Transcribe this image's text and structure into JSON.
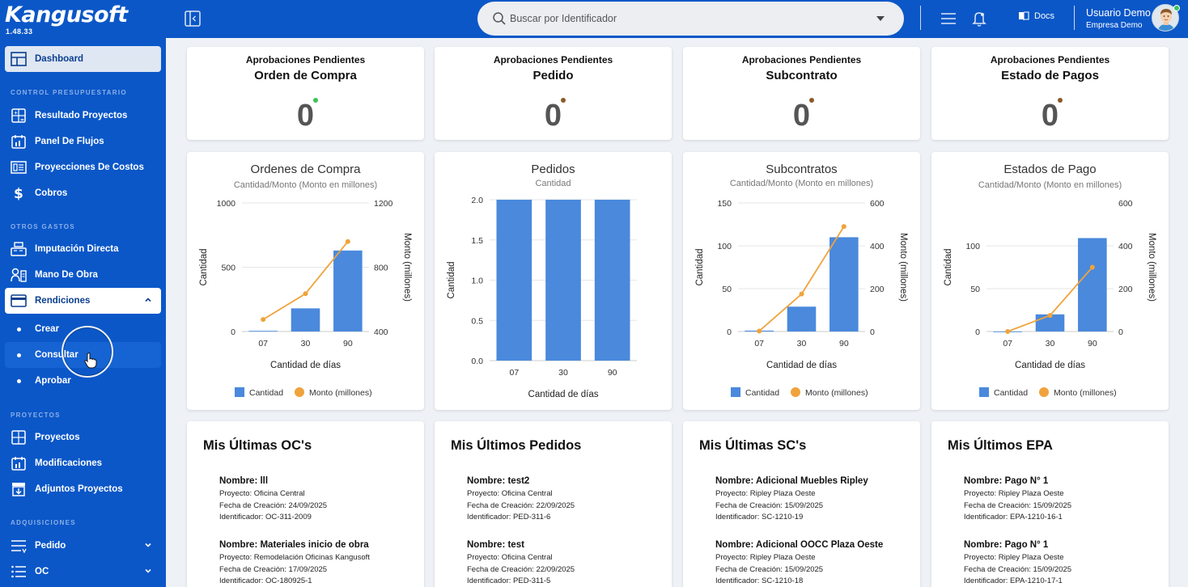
{
  "app": {
    "logo": "Kangusoft",
    "version": "1.48.33"
  },
  "header": {
    "search_placeholder": "Buscar por Identificador",
    "docs_label": "Docs",
    "user_name": "Usuario Demo",
    "company": "Empresa Demo"
  },
  "sidebar": {
    "dashboard": "Dashboard",
    "sections": {
      "control": "CONTROL PRESUPUESTARIO",
      "otros": "OTROS GASTOS",
      "proyectos": "PROYECTOS",
      "adquisiciones": "ADQUISICIONES"
    },
    "items": {
      "resultado": "Resultado Proyectos",
      "flujos": "Panel De Flujos",
      "proyecciones": "Proyecciones De Costos",
      "cobros": "Cobros",
      "imputacion": "Imputación Directa",
      "mano_obra": "Mano De Obra",
      "rendiciones": "Rendiciones",
      "crear": "Crear",
      "consultar": "Consultar",
      "aprobar": "Aprobar",
      "proyectos": "Proyectos",
      "modificaciones": "Modificaciones",
      "adjuntos": "Adjuntos Proyectos",
      "pedido": "Pedido",
      "oc": "OC"
    }
  },
  "kpis": [
    {
      "label": "Aprobaciones Pendientes",
      "name": "Orden de Compra",
      "value": "0",
      "status_color": "#3cc35a"
    },
    {
      "label": "Aprobaciones Pendientes",
      "name": "Pedido",
      "value": "0",
      "status_color": "#8a5a2b"
    },
    {
      "label": "Aprobaciones Pendientes",
      "name": "Subcontrato",
      "value": "0",
      "status_color": "#8a5a2b"
    },
    {
      "label": "Aprobaciones Pendientes",
      "name": "Estado de Pagos",
      "value": "0",
      "status_color": "#8a5a2b"
    }
  ],
  "chart_data": [
    {
      "type": "bar",
      "title": "Ordenes de Compra",
      "subtitle": "Cantidad/Monto (Monto en millones)",
      "xlabel": "Cantidad de días",
      "ylabel": "Cantidad",
      "y2label": "Monto (millones)",
      "categories": [
        "07",
        "30",
        "90"
      ],
      "ylim": [
        0,
        1000
      ],
      "yticks": [
        0,
        500,
        1000
      ],
      "y2lim": [
        400,
        1200
      ],
      "y2ticks": [
        400,
        800,
        1200
      ],
      "series": [
        {
          "name": "Cantidad",
          "kind": "bar",
          "values": [
            5,
            180,
            630
          ],
          "color": "#4a89dc"
        },
        {
          "name": "Monto (millones)",
          "kind": "line",
          "values": [
            475,
            635,
            960
          ],
          "color": "#f0a33c"
        }
      ],
      "legend": "bottom"
    },
    {
      "type": "bar",
      "title": "Pedidos",
      "subtitle": "Cantidad",
      "xlabel": "Cantidad de días",
      "ylabel": "Cantidad",
      "categories": [
        "07",
        "30",
        "90"
      ],
      "ylim": [
        0,
        2.0
      ],
      "yticks": [
        "0.0",
        "0.5",
        "1.0",
        "1.5",
        "2.0"
      ],
      "series": [
        {
          "name": "Cantidad",
          "kind": "bar",
          "values": [
            2,
            2,
            2
          ],
          "color": "#4a89dc"
        }
      ]
    },
    {
      "type": "bar",
      "title": "Subcontratos",
      "subtitle": "Cantidad/Monto (Monto en millones)",
      "xlabel": "Cantidad de días",
      "ylabel": "Cantidad",
      "y2label": "Monto (millones)",
      "categories": [
        "07",
        "30",
        "90"
      ],
      "ylim": [
        0,
        150
      ],
      "yticks": [
        0,
        50,
        100,
        150
      ],
      "y2lim": [
        0,
        600
      ],
      "y2ticks": [
        0,
        200,
        400,
        600
      ],
      "series": [
        {
          "name": "Cantidad",
          "kind": "bar",
          "values": [
            1,
            29,
            110
          ],
          "color": "#4a89dc"
        },
        {
          "name": "Monto (millones)",
          "kind": "line",
          "values": [
            2,
            175,
            490
          ],
          "color": "#f0a33c"
        }
      ],
      "legend": "bottom"
    },
    {
      "type": "bar",
      "title": "Estados de Pago",
      "subtitle": "Cantidad/Monto (Monto en millones)",
      "xlabel": "Cantidad de días",
      "ylabel": "Cantidad",
      "y2label": "Monto (millones)",
      "categories": [
        "07",
        "30",
        "90"
      ],
      "ylim": [
        0,
        150
      ],
      "yticks": [
        0,
        50,
        100
      ],
      "y2lim": [
        0,
        600
      ],
      "y2ticks": [
        0,
        200,
        400,
        600
      ],
      "series": [
        {
          "name": "Cantidad",
          "kind": "bar",
          "values": [
            0,
            20,
            109
          ],
          "color": "#4a89dc"
        },
        {
          "name": "Monto (millones)",
          "kind": "line",
          "values": [
            0,
            75,
            300
          ],
          "color": "#f0a33c"
        }
      ],
      "legend": "bottom"
    }
  ],
  "lists": [
    {
      "title": "Mis Últimas OC's",
      "entries": [
        {
          "name": "Nombre: lll",
          "proyecto": "Proyecto: Oficina Central",
          "fecha": "Fecha de Creación: 24/09/2025",
          "id": "Identificador: OC-311-2009"
        },
        {
          "name": "Nombre: Materiales inicio de obra",
          "proyecto": "Proyecto: Remodelación Oficinas Kangusoft",
          "fecha": "Fecha de Creación: 17/09/2025",
          "id": "Identificador: OC-180925-1"
        }
      ]
    },
    {
      "title": "Mis Últimos Pedidos",
      "entries": [
        {
          "name": "Nombre: test2",
          "proyecto": "Proyecto: Oficina Central",
          "fecha": "Fecha de Creación: 22/09/2025",
          "id": "Identificador: PED-311-6"
        },
        {
          "name": "Nombre: test",
          "proyecto": "Proyecto: Oficina Central",
          "fecha": "Fecha de Creación: 22/09/2025",
          "id": "Identificador: PED-311-5"
        }
      ]
    },
    {
      "title": "Mis Últimas SC's",
      "entries": [
        {
          "name": "Nombre: Adicional Muebles Ripley",
          "proyecto": "Proyecto: Ripley Plaza Oeste",
          "fecha": "Fecha de Creación: 15/09/2025",
          "id": "Identificador: SC-1210-19"
        },
        {
          "name": "Nombre: Adicional OOCC Plaza Oeste",
          "proyecto": "Proyecto: Ripley Plaza Oeste",
          "fecha": "Fecha de Creación: 15/09/2025",
          "id": "Identificador: SC-1210-18"
        }
      ]
    },
    {
      "title": "Mis Últimos EPA",
      "entries": [
        {
          "name": "Nombre: Pago N° 1",
          "proyecto": "Proyecto: Ripley Plaza Oeste",
          "fecha": "Fecha de Creación: 15/09/2025",
          "id": "Identificador: EPA-1210-16-1"
        },
        {
          "name": "Nombre: Pago N° 1",
          "proyecto": "Proyecto: Ripley Plaza Oeste",
          "fecha": "Fecha de Creación: 15/09/2025",
          "id": "Identificador: EPA-1210-17-1"
        }
      ]
    }
  ]
}
